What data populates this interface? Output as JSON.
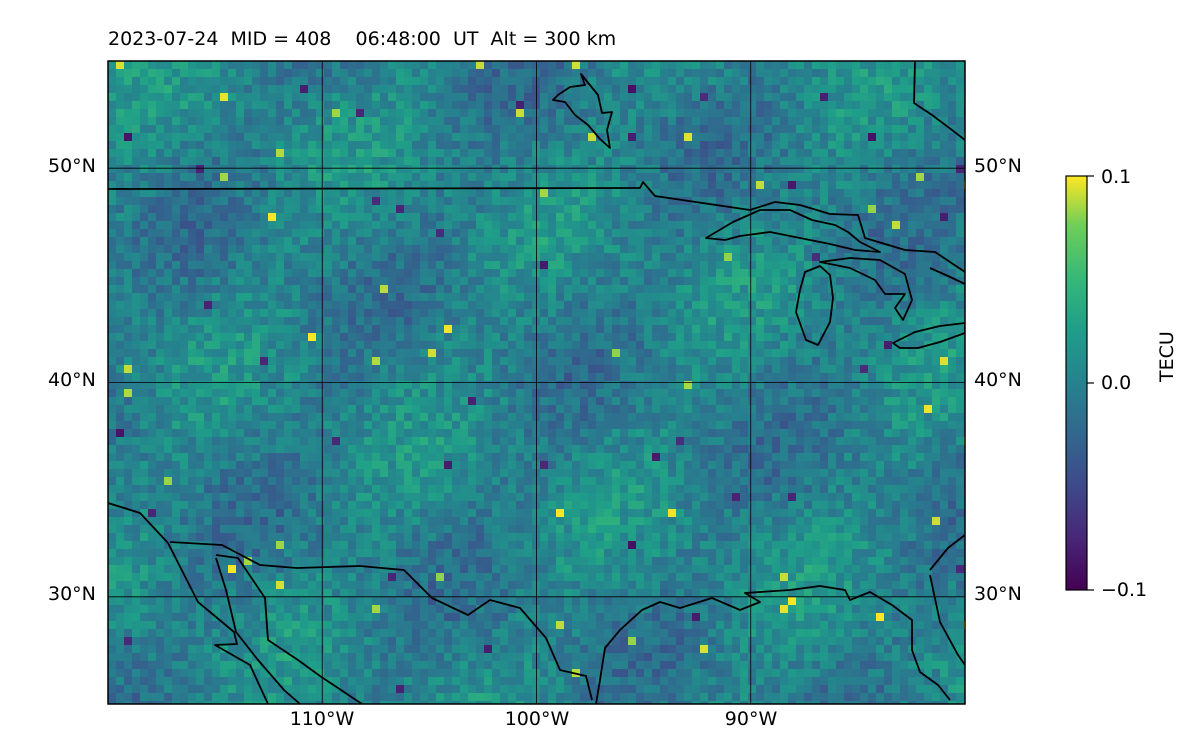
{
  "title": "2023-07-24  MID = 408    06:48:00  UT  Alt = 300 km",
  "map": {
    "projection": "equirectangular",
    "lon_range": [
      -120,
      -80
    ],
    "lat_range": [
      25,
      55
    ],
    "field_description": "gridded TEC perturbation (viridis), mostly near 0 with speckled positive/negative patches",
    "lat_ticks": [
      {
        "value": 30,
        "label": "30°N"
      },
      {
        "value": 40,
        "label": "40°N"
      },
      {
        "value": 50,
        "label": "50°N"
      }
    ],
    "lon_ticks": [
      {
        "value": -110,
        "label": "110°W"
      },
      {
        "value": -100,
        "label": "100°W"
      },
      {
        "value": -90,
        "label": "90°W"
      }
    ],
    "gridlines": true
  },
  "colorbar": {
    "label": "TECU",
    "colormap": "viridis",
    "vmin": -0.1,
    "vmax": 0.1,
    "ticks": [
      {
        "value": 0.1,
        "label": "0.1"
      },
      {
        "value": 0.0,
        "label": "0.0"
      },
      {
        "value": -0.1,
        "label": "−0.1"
      }
    ]
  },
  "colors": {
    "viridis_low": "#440154",
    "viridis_mid": "#21918c",
    "viridis_high": "#fde725",
    "coastline": "#000000"
  }
}
